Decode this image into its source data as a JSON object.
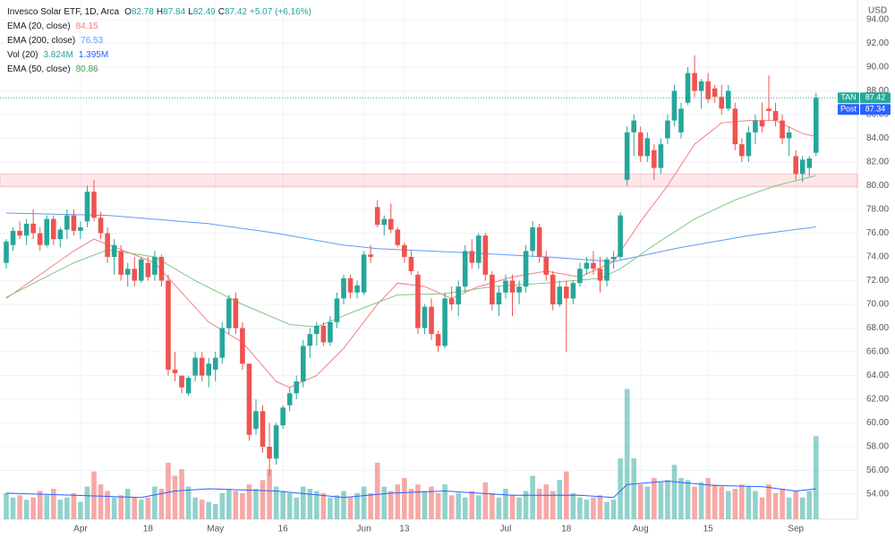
{
  "chart_data": {
    "type": "candlestick",
    "title": "Invesco Solar ETF, 1D, Arca",
    "ohlc_labels": [
      "O",
      "H",
      "L",
      "C"
    ],
    "change": "+5.07 (+6.16%)",
    "currency": "USD",
    "up_color": "#26a69a",
    "down_color": "#ef5350",
    "ohlc": [
      [
        73.5,
        75.5,
        73,
        75.3
      ],
      [
        75,
        76.5,
        74.5,
        76.2
      ],
      [
        76.2,
        77,
        75.5,
        75.8
      ],
      [
        75.8,
        77.2,
        75,
        76.8
      ],
      [
        76.8,
        78,
        75.5,
        76
      ],
      [
        76,
        76.5,
        74.5,
        75
      ],
      [
        75,
        77.5,
        74.8,
        77.2
      ],
      [
        77.2,
        77.5,
        75,
        75.5
      ],
      [
        75.5,
        76.5,
        74.8,
        76.3
      ],
      [
        76.3,
        78,
        75.5,
        77.5
      ],
      [
        77.5,
        78,
        75.8,
        76.2
      ],
      [
        76.2,
        77,
        75.5,
        76.5
      ],
      [
        77,
        80,
        76.5,
        79.5
      ],
      [
        79.5,
        80.5,
        77,
        77.3
      ],
      [
        77.3,
        77.8,
        75.5,
        76
      ],
      [
        76,
        76.5,
        73.5,
        74
      ],
      [
        74,
        75.5,
        72.5,
        75
      ],
      [
        74.5,
        75,
        72,
        72.5
      ],
      [
        72.5,
        73.5,
        71.5,
        73
      ],
      [
        73,
        74,
        71.5,
        72
      ],
      [
        72,
        74,
        71.8,
        73.8
      ],
      [
        73.5,
        74,
        72,
        72.3
      ],
      [
        72.5,
        74.5,
        72,
        74
      ],
      [
        74,
        74.2,
        71.5,
        72
      ],
      [
        72,
        72.5,
        64,
        64.5
      ],
      [
        64.5,
        66,
        63.5,
        64.2
      ],
      [
        64,
        64,
        62.5,
        63
      ],
      [
        62.5,
        64,
        62.3,
        63.8
      ],
      [
        64,
        66,
        63.5,
        65.5
      ],
      [
        65.5,
        66,
        63.5,
        64
      ],
      [
        64,
        65.5,
        63,
        65
      ],
      [
        64.5,
        66,
        63.5,
        65.5
      ],
      [
        65.5,
        68.5,
        65,
        68
      ],
      [
        68,
        70.8,
        67.5,
        70.5
      ],
      [
        70.5,
        71,
        67.5,
        68
      ],
      [
        68,
        68.5,
        64.5,
        65
      ],
      [
        65,
        65,
        58.5,
        59
      ],
      [
        59.5,
        62,
        59,
        61
      ],
      [
        61,
        61.5,
        57.5,
        58
      ],
      [
        58,
        60,
        55.5,
        57
      ],
      [
        57,
        60,
        56.5,
        59.8
      ],
      [
        59.8,
        61.5,
        59.5,
        61.3
      ],
      [
        61.5,
        63,
        61,
        62.5
      ],
      [
        62.5,
        64,
        62,
        63.5
      ],
      [
        63.5,
        67,
        63,
        66.5
      ],
      [
        66.5,
        68,
        65.5,
        67.5
      ],
      [
        67.5,
        68.5,
        66.5,
        68.2
      ],
      [
        68.2,
        68.5,
        66.5,
        66.8
      ],
      [
        66.8,
        69,
        66.5,
        68.5
      ],
      [
        68.5,
        71,
        68,
        70.5
      ],
      [
        70.5,
        72.5,
        70,
        72.2
      ],
      [
        72.2,
        72.5,
        70.5,
        71
      ],
      [
        71,
        72,
        70.5,
        71.6
      ],
      [
        71,
        74.5,
        70.8,
        74.2
      ],
      [
        74.2,
        75,
        73.5,
        74
      ],
      [
        78.2,
        78.8,
        76.5,
        76.7
      ],
      [
        76.7,
        77.5,
        75.8,
        77.2
      ],
      [
        77.2,
        78.5,
        76,
        76.3
      ],
      [
        76.3,
        76.5,
        74.8,
        75
      ],
      [
        75,
        75.2,
        73.5,
        74
      ],
      [
        74,
        74.5,
        72.5,
        72.8
      ],
      [
        72.5,
        72.8,
        67.5,
        68
      ],
      [
        68,
        70,
        67.5,
        69.8
      ],
      [
        69.8,
        70.5,
        67,
        67.5
      ],
      [
        67.5,
        67.8,
        66,
        66.5
      ],
      [
        66.5,
        71,
        66.3,
        70.5
      ],
      [
        70.5,
        71.5,
        69.5,
        70
      ],
      [
        70,
        72,
        69,
        71.5
      ],
      [
        71.5,
        75,
        71,
        74.5
      ],
      [
        74.5,
        75.5,
        73,
        73.5
      ],
      [
        73.5,
        76,
        73,
        75.8
      ],
      [
        75.8,
        76,
        72,
        72.5
      ],
      [
        72.5,
        72.8,
        69.5,
        70
      ],
      [
        70,
        71.5,
        69,
        71
      ],
      [
        71,
        72.5,
        70.5,
        72
      ],
      [
        72,
        72.5,
        69,
        71
      ],
      [
        71,
        72,
        70,
        71.5
      ],
      [
        71.5,
        75,
        71,
        74.5
      ],
      [
        74.5,
        77,
        74,
        76.5
      ],
      [
        76.5,
        76.8,
        73.5,
        74
      ],
      [
        74,
        74.5,
        72,
        72.5
      ],
      [
        72.5,
        72.8,
        69.5,
        70
      ],
      [
        70,
        72,
        69.8,
        71.5
      ],
      [
        71.5,
        72,
        66,
        70.5
      ],
      [
        70.5,
        72,
        70,
        71.8
      ],
      [
        71.8,
        73.5,
        71.5,
        73
      ],
      [
        73,
        74,
        72.5,
        73.5
      ],
      [
        73.5,
        74.5,
        72.5,
        73
      ],
      [
        73,
        74,
        71,
        72
      ],
      [
        72,
        74,
        71.5,
        73.8
      ],
      [
        73.8,
        74.5,
        73,
        74
      ],
      [
        74,
        77.8,
        73.8,
        77.5
      ],
      [
        80.5,
        85,
        80,
        84.5
      ],
      [
        84.5,
        86,
        82.5,
        85.5
      ],
      [
        84.5,
        85,
        82,
        82.5
      ],
      [
        82.5,
        84.5,
        82,
        84
      ],
      [
        83,
        83.5,
        80.5,
        81.5
      ],
      [
        81.5,
        84,
        81,
        83.5
      ],
      [
        84,
        86,
        83.5,
        85.5
      ],
      [
        85.5,
        88.5,
        85,
        88
      ],
      [
        84.5,
        87,
        84,
        86.5
      ],
      [
        87,
        90,
        86.8,
        89.5
      ],
      [
        89.5,
        91,
        87.5,
        88
      ],
      [
        88,
        89,
        86.5,
        88.8
      ],
      [
        88.8,
        89.5,
        87,
        87.3
      ],
      [
        88.2,
        88.5,
        87,
        87.5
      ],
      [
        87.5,
        88.5,
        86,
        86.5
      ],
      [
        86.5,
        88.5,
        86.3,
        88
      ],
      [
        86.5,
        87,
        83,
        83.5
      ],
      [
        83.5,
        84,
        82,
        82.5
      ],
      [
        82.5,
        85,
        82,
        84.5
      ],
      [
        84.5,
        86,
        83.5,
        85.5
      ],
      [
        85.5,
        87,
        84.5,
        85
      ],
      [
        86.5,
        89.3,
        85.5,
        86.3
      ],
      [
        86.3,
        87,
        85,
        85.5
      ],
      [
        85.5,
        86,
        83.5,
        84
      ],
      [
        84,
        85,
        82.5,
        84.5
      ],
      [
        82.5,
        83,
        80.5,
        81
      ],
      [
        81,
        82.5,
        80.3,
        82.2
      ],
      [
        81.5,
        82.5,
        80.8,
        82.3
      ],
      [
        82.78,
        87.84,
        82.49,
        87.42
      ]
    ],
    "volume": {
      "name": "Vol (20)",
      "last_label": "3.824M",
      "values": [
        1.2,
        1.0,
        1.1,
        0.9,
        1.0,
        1.3,
        1.1,
        1.4,
        0.9,
        1.0,
        1.2,
        0.8,
        1.5,
        2.2,
        1.6,
        1.3,
        1.0,
        1.1,
        1.4,
        1.0,
        0.9,
        1.0,
        1.5,
        1.4,
        2.6,
        2.0,
        2.3,
        1.5,
        1.0,
        0.9,
        0.8,
        0.7,
        1.2,
        1.4,
        1.3,
        1.2,
        1.6,
        1.4,
        1.8,
        2.3,
        1.5,
        1.3,
        1.2,
        1.0,
        1.5,
        1.4,
        1.3,
        1.2,
        1.0,
        1.1,
        1.3,
        1.0,
        1.2,
        1.5,
        1.2,
        2.6,
        1.5,
        1.3,
        1.6,
        1.9,
        1.4,
        1.6,
        1.3,
        1.5,
        1.2,
        1.6,
        1.1,
        1.2,
        1.0,
        1.3,
        1.1,
        1.7,
        1.2,
        1.0,
        1.4,
        1.1,
        1.0,
        1.3,
        2.0,
        1.4,
        1.6,
        1.3,
        1.8,
        2.2,
        1.2,
        1.0,
        0.9,
        1.0,
        1.1,
        0.8,
        0.9,
        2.8,
        6.0,
        2.8,
        1.6,
        1.5,
        1.9,
        1.7,
        1.8,
        2.5,
        1.9,
        1.8,
        1.5,
        1.7,
        1.9,
        1.6,
        1.5,
        1.3,
        1.4,
        1.6,
        1.5,
        1.3,
        1.0,
        1.6,
        1.2,
        1.4,
        1.0,
        1.3,
        1.0,
        1.3,
        3.824
      ]
    },
    "vol_ema": {
      "last_label": "1.395M",
      "color": "#2962ff",
      "x": [
        0,
        10,
        20,
        25,
        30,
        40,
        50,
        57,
        65,
        75,
        85,
        90,
        92,
        98,
        105,
        112,
        117,
        120
      ],
      "values": [
        1.2,
        1.1,
        1.0,
        1.3,
        1.4,
        1.3,
        1.0,
        1.2,
        1.3,
        1.1,
        1.1,
        1.0,
        1.6,
        1.75,
        1.55,
        1.5,
        1.3,
        1.395
      ]
    },
    "emas": [
      {
        "name": "EMA (20, close)",
        "color": "#f77c80",
        "x": [
          0,
          5,
          10,
          13,
          18,
          22,
          26,
          30,
          35,
          40,
          42,
          46,
          50,
          55,
          58,
          62,
          66,
          70,
          75,
          80,
          85,
          90,
          94,
          98,
          102,
          106,
          110,
          114,
          118,
          120
        ],
        "values": [
          70.5,
          72.5,
          74.5,
          75.5,
          74.4,
          73.5,
          71,
          68.5,
          66.8,
          63.5,
          63,
          64,
          66.3,
          70,
          71.8,
          71.5,
          70.5,
          71.5,
          72.3,
          72.8,
          72.3,
          73.6,
          77,
          80,
          83.5,
          85.3,
          85.5,
          85.5,
          84.4,
          84.15
        ]
      },
      {
        "name": "EMA (200, close)",
        "color": "#5b9cf6",
        "x": [
          0,
          15,
          30,
          40,
          50,
          55,
          70,
          80,
          90,
          100,
          110,
          120
        ],
        "values": [
          77.7,
          77.5,
          76.8,
          76,
          75,
          74.7,
          74.3,
          74,
          73.6,
          74.8,
          75.8,
          76.53
        ]
      },
      {
        "name": "EMA (50, close)",
        "color": "#81c784",
        "x": [
          0,
          10,
          15,
          22,
          28,
          35,
          42,
          46,
          52,
          58,
          65,
          72,
          80,
          88,
          91,
          96,
          102,
          108,
          114,
          120
        ],
        "values": [
          70.6,
          73.5,
          74.6,
          74,
          72,
          70,
          68.3,
          68.1,
          69.5,
          70.8,
          70.9,
          71.5,
          71.8,
          72.2,
          73,
          75,
          77.2,
          78.8,
          80,
          80.86
        ]
      }
    ],
    "zone": [
      79.9,
      81.0
    ],
    "symbol": "TAN",
    "post": {
      "label": "Post",
      "value": 87.34
    },
    "ylim": [
      51.89,
      95.66
    ],
    "y2lim": [
      0,
      23.9
    ],
    "yticks": [
      {
        "value": 54,
        "label": "54.00"
      },
      {
        "value": 56,
        "label": "56.00"
      },
      {
        "value": 58,
        "label": "58.00"
      },
      {
        "value": 60,
        "label": "60.00"
      },
      {
        "value": 62,
        "label": "62.00"
      },
      {
        "value": 64,
        "label": "64.00"
      },
      {
        "value": 66,
        "label": "66.00"
      },
      {
        "value": 68,
        "label": "68.00"
      },
      {
        "value": 70,
        "label": "70.00"
      },
      {
        "value": 72,
        "label": "72.00"
      },
      {
        "value": 74,
        "label": "74.00"
      },
      {
        "value": 76,
        "label": "76.00"
      },
      {
        "value": 78,
        "label": "78.00"
      },
      {
        "value": 80,
        "label": "80.00"
      },
      {
        "value": 82,
        "label": "82.00"
      },
      {
        "value": 84,
        "label": "84.00"
      },
      {
        "value": 86,
        "label": "86.00"
      },
      {
        "value": 88,
        "label": "88.00"
      },
      {
        "value": 90,
        "label": "90.00"
      },
      {
        "value": 92,
        "label": "92.00"
      },
      {
        "value": 94,
        "label": "94.00"
      }
    ],
    "xticks": [
      {
        "value": 11,
        "label": "Apr"
      },
      {
        "value": 21,
        "label": "18"
      },
      {
        "value": 31,
        "label": "May"
      },
      {
        "value": 41,
        "label": "16"
      },
      {
        "value": 53,
        "label": "Jun"
      },
      {
        "value": 59,
        "label": "13"
      },
      {
        "value": 74,
        "label": "Jul"
      },
      {
        "value": 83,
        "label": "18"
      },
      {
        "value": 94,
        "label": "Aug"
      },
      {
        "value": 104,
        "label": "15"
      },
      {
        "value": 117,
        "label": "Sep"
      }
    ]
  }
}
